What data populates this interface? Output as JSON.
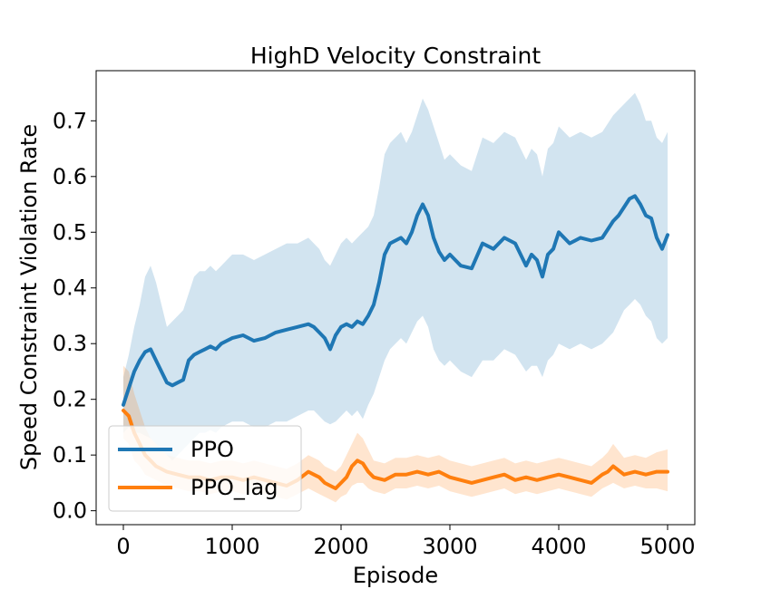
{
  "chart_data": {
    "type": "line",
    "title": "HighD Velocity Constraint",
    "xlabel": "Episode",
    "ylabel": "Speed Constraint Violation Rate",
    "xlim": [
      -250,
      5250
    ],
    "ylim": [
      -0.025,
      0.79
    ],
    "xticks": [
      0,
      1000,
      2000,
      3000,
      4000,
      5000
    ],
    "xtick_labels": [
      "0",
      "1000",
      "2000",
      "3000",
      "4000",
      "5000"
    ],
    "yticks": [
      0.0,
      0.1,
      0.2,
      0.3,
      0.4,
      0.5,
      0.6,
      0.7
    ],
    "ytick_labels": [
      "0.0",
      "0.1",
      "0.2",
      "0.3",
      "0.4",
      "0.5",
      "0.6",
      "0.7"
    ],
    "grid": false,
    "legend_position": "lower-left",
    "series": [
      {
        "name": "PPO",
        "color": "#1f77b4",
        "band_color": "#d3e4f1",
        "x": [
          0,
          50,
          100,
          150,
          200,
          250,
          300,
          350,
          400,
          450,
          500,
          550,
          600,
          650,
          700,
          750,
          800,
          850,
          900,
          950,
          1000,
          1100,
          1200,
          1300,
          1400,
          1500,
          1600,
          1700,
          1750,
          1800,
          1850,
          1900,
          1950,
          2000,
          2050,
          2100,
          2150,
          2200,
          2250,
          2300,
          2350,
          2400,
          2450,
          2500,
          2550,
          2600,
          2650,
          2700,
          2750,
          2800,
          2850,
          2900,
          2950,
          3000,
          3100,
          3200,
          3300,
          3400,
          3500,
          3600,
          3700,
          3750,
          3800,
          3850,
          3900,
          3950,
          4000,
          4100,
          4200,
          4300,
          4400,
          4500,
          4550,
          4600,
          4650,
          4700,
          4750,
          4800,
          4850,
          4900,
          4950,
          5000
        ],
        "values": [
          0.19,
          0.22,
          0.25,
          0.27,
          0.285,
          0.29,
          0.27,
          0.25,
          0.23,
          0.225,
          0.23,
          0.235,
          0.27,
          0.28,
          0.285,
          0.29,
          0.295,
          0.29,
          0.3,
          0.305,
          0.31,
          0.315,
          0.305,
          0.31,
          0.32,
          0.325,
          0.33,
          0.335,
          0.33,
          0.32,
          0.31,
          0.29,
          0.315,
          0.33,
          0.335,
          0.33,
          0.34,
          0.335,
          0.35,
          0.37,
          0.41,
          0.46,
          0.48,
          0.485,
          0.49,
          0.48,
          0.5,
          0.53,
          0.55,
          0.53,
          0.49,
          0.465,
          0.45,
          0.46,
          0.44,
          0.435,
          0.48,
          0.47,
          0.49,
          0.48,
          0.44,
          0.46,
          0.45,
          0.42,
          0.46,
          0.47,
          0.5,
          0.48,
          0.49,
          0.485,
          0.49,
          0.52,
          0.53,
          0.545,
          0.56,
          0.565,
          0.55,
          0.53,
          0.525,
          0.49,
          0.47,
          0.495
        ],
        "lower": [
          0.14,
          0.15,
          0.14,
          0.14,
          0.135,
          0.13,
          0.12,
          0.11,
          0.1,
          0.09,
          0.1,
          0.11,
          0.12,
          0.13,
          0.14,
          0.14,
          0.145,
          0.14,
          0.15,
          0.155,
          0.16,
          0.16,
          0.15,
          0.15,
          0.16,
          0.16,
          0.17,
          0.18,
          0.18,
          0.17,
          0.16,
          0.155,
          0.16,
          0.17,
          0.18,
          0.17,
          0.18,
          0.165,
          0.19,
          0.21,
          0.24,
          0.27,
          0.29,
          0.3,
          0.31,
          0.3,
          0.32,
          0.34,
          0.35,
          0.33,
          0.29,
          0.27,
          0.26,
          0.27,
          0.25,
          0.24,
          0.27,
          0.27,
          0.29,
          0.28,
          0.25,
          0.26,
          0.26,
          0.24,
          0.27,
          0.28,
          0.3,
          0.29,
          0.3,
          0.29,
          0.3,
          0.32,
          0.34,
          0.36,
          0.37,
          0.38,
          0.37,
          0.35,
          0.34,
          0.31,
          0.3,
          0.31
        ],
        "upper": [
          0.24,
          0.28,
          0.33,
          0.37,
          0.42,
          0.44,
          0.41,
          0.37,
          0.33,
          0.34,
          0.35,
          0.36,
          0.39,
          0.42,
          0.43,
          0.43,
          0.44,
          0.43,
          0.44,
          0.45,
          0.46,
          0.46,
          0.45,
          0.46,
          0.47,
          0.48,
          0.48,
          0.49,
          0.48,
          0.47,
          0.45,
          0.44,
          0.46,
          0.48,
          0.49,
          0.48,
          0.49,
          0.5,
          0.51,
          0.53,
          0.58,
          0.64,
          0.66,
          0.67,
          0.68,
          0.66,
          0.68,
          0.71,
          0.74,
          0.72,
          0.69,
          0.66,
          0.63,
          0.64,
          0.62,
          0.61,
          0.67,
          0.66,
          0.68,
          0.67,
          0.63,
          0.65,
          0.64,
          0.6,
          0.65,
          0.66,
          0.69,
          0.67,
          0.68,
          0.67,
          0.68,
          0.71,
          0.72,
          0.73,
          0.74,
          0.75,
          0.73,
          0.7,
          0.7,
          0.67,
          0.66,
          0.68
        ]
      },
      {
        "name": "PPO_lag",
        "color": "#ff7f0e",
        "band_color": "#ffdfc5",
        "x": [
          0,
          50,
          100,
          150,
          200,
          250,
          300,
          350,
          400,
          500,
          600,
          700,
          800,
          900,
          1000,
          1100,
          1200,
          1300,
          1400,
          1500,
          1600,
          1700,
          1750,
          1800,
          1850,
          1900,
          1950,
          2000,
          2050,
          2100,
          2150,
          2200,
          2250,
          2300,
          2400,
          2500,
          2600,
          2700,
          2800,
          2900,
          3000,
          3100,
          3200,
          3300,
          3400,
          3500,
          3600,
          3700,
          3800,
          3900,
          4000,
          4100,
          4200,
          4300,
          4400,
          4450,
          4500,
          4600,
          4700,
          4800,
          4900,
          5000
        ],
        "values": [
          0.18,
          0.17,
          0.14,
          0.12,
          0.1,
          0.09,
          0.08,
          0.075,
          0.07,
          0.065,
          0.06,
          0.06,
          0.055,
          0.06,
          0.06,
          0.055,
          0.06,
          0.055,
          0.05,
          0.045,
          0.055,
          0.07,
          0.065,
          0.06,
          0.05,
          0.045,
          0.04,
          0.05,
          0.06,
          0.08,
          0.09,
          0.085,
          0.07,
          0.06,
          0.055,
          0.065,
          0.065,
          0.07,
          0.065,
          0.07,
          0.06,
          0.055,
          0.05,
          0.055,
          0.06,
          0.065,
          0.055,
          0.06,
          0.055,
          0.06,
          0.065,
          0.06,
          0.055,
          0.05,
          0.065,
          0.07,
          0.08,
          0.065,
          0.07,
          0.065,
          0.07,
          0.07
        ],
        "lower": [
          0.13,
          0.12,
          0.09,
          0.08,
          0.065,
          0.06,
          0.055,
          0.05,
          0.045,
          0.04,
          0.035,
          0.035,
          0.03,
          0.035,
          0.035,
          0.03,
          0.035,
          0.03,
          0.025,
          0.02,
          0.03,
          0.04,
          0.035,
          0.03,
          0.025,
          0.02,
          0.015,
          0.025,
          0.03,
          0.045,
          0.05,
          0.05,
          0.04,
          0.035,
          0.03,
          0.04,
          0.04,
          0.045,
          0.04,
          0.045,
          0.035,
          0.03,
          0.025,
          0.03,
          0.035,
          0.04,
          0.03,
          0.035,
          0.03,
          0.035,
          0.04,
          0.035,
          0.03,
          0.025,
          0.04,
          0.045,
          0.05,
          0.04,
          0.045,
          0.04,
          0.04,
          0.035
        ],
        "upper": [
          0.26,
          0.25,
          0.21,
          0.18,
          0.15,
          0.13,
          0.12,
          0.11,
          0.1,
          0.095,
          0.09,
          0.09,
          0.085,
          0.09,
          0.09,
          0.085,
          0.09,
          0.085,
          0.08,
          0.075,
          0.085,
          0.1,
          0.095,
          0.09,
          0.08,
          0.075,
          0.07,
          0.08,
          0.1,
          0.12,
          0.14,
          0.13,
          0.11,
          0.09,
          0.085,
          0.095,
          0.095,
          0.1,
          0.095,
          0.1,
          0.09,
          0.085,
          0.08,
          0.085,
          0.09,
          0.095,
          0.085,
          0.09,
          0.085,
          0.09,
          0.095,
          0.09,
          0.085,
          0.08,
          0.095,
          0.105,
          0.12,
          0.095,
          0.1,
          0.095,
          0.105,
          0.11
        ]
      }
    ]
  }
}
